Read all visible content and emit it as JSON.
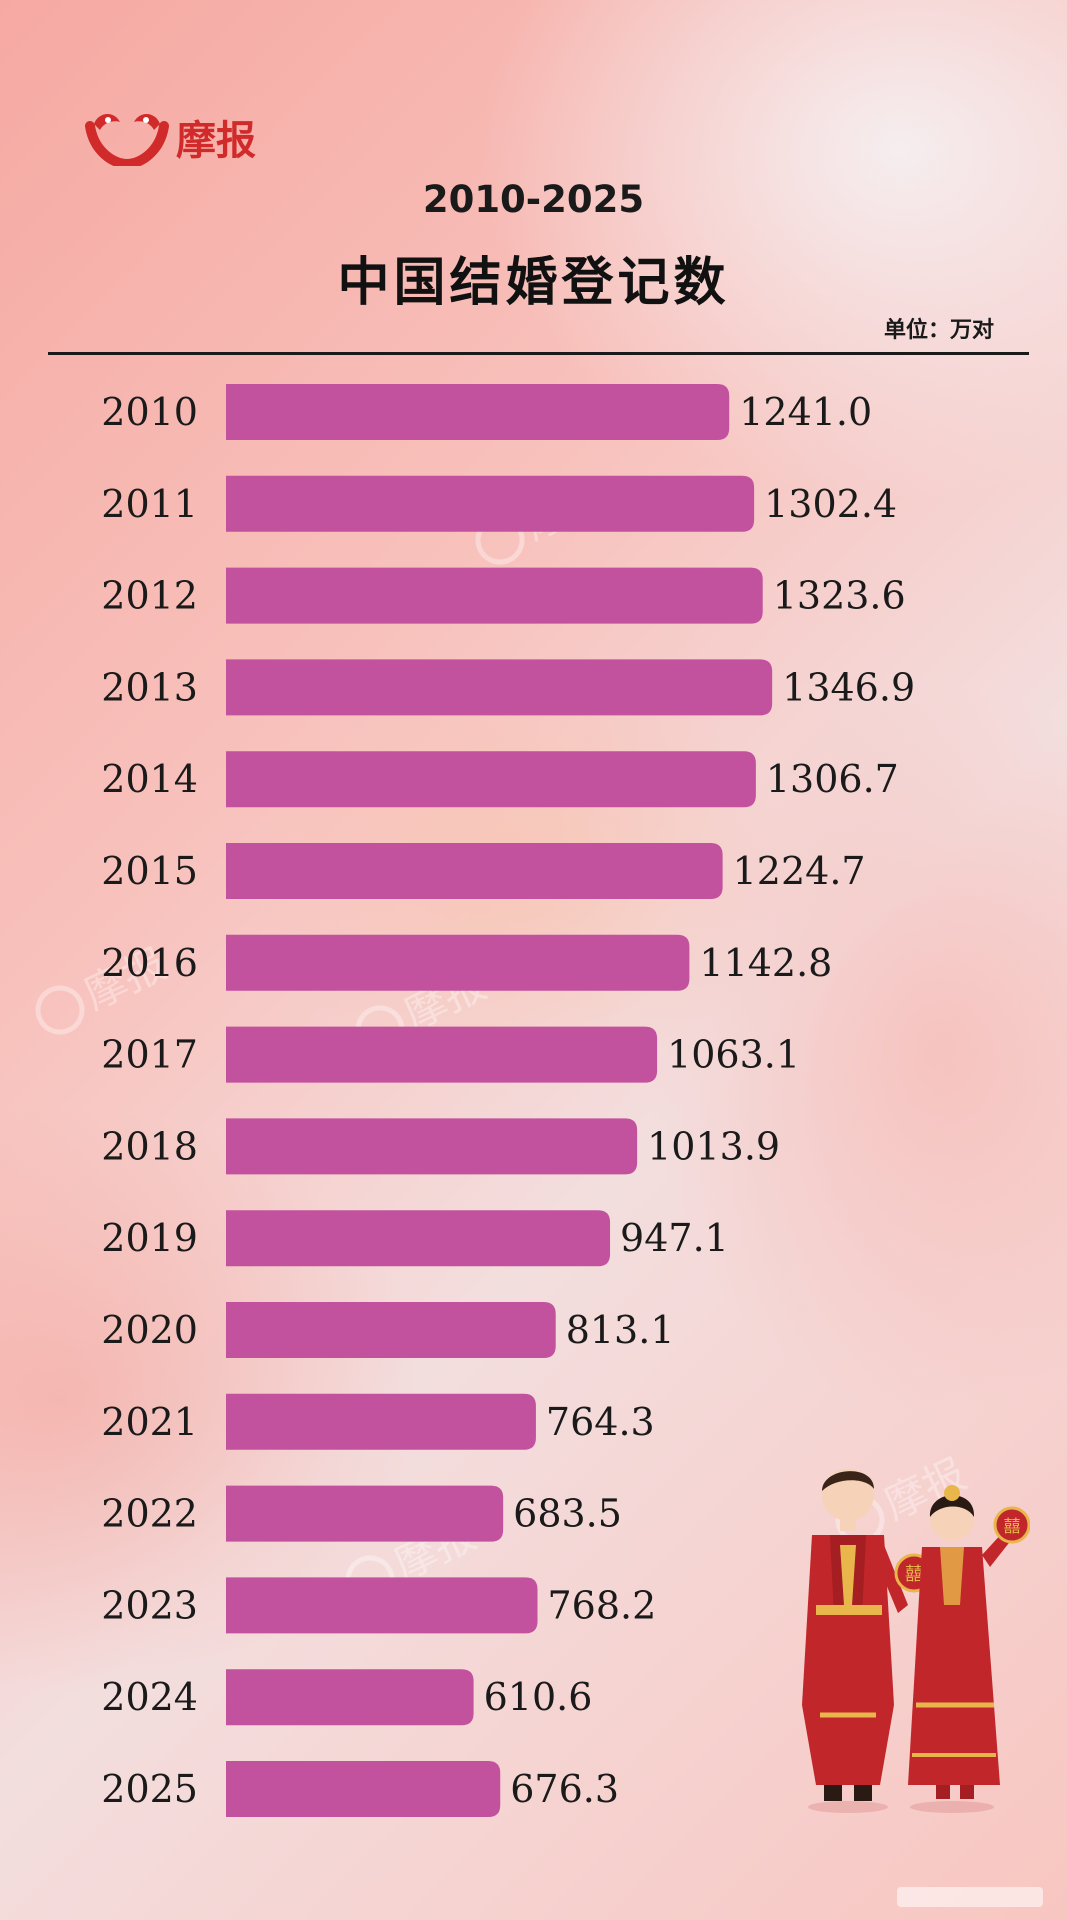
{
  "brand": {
    "name": "摩报",
    "logo_icon": "moba-logo-icon",
    "brand_color": "#d12a2a"
  },
  "chart_data": {
    "type": "bar",
    "orientation": "horizontal",
    "title": "中国结婚登记数",
    "subtitle": "2010-2025",
    "unit": "单位：万对",
    "bar_color": "#c2519e",
    "categories": [
      "2010",
      "2011",
      "2012",
      "2013",
      "2014",
      "2015",
      "2016",
      "2017",
      "2018",
      "2019",
      "2020",
      "2021",
      "2022",
      "2023",
      "2024",
      "2025"
    ],
    "values": [
      1241.0,
      1302.4,
      1323.6,
      1346.9,
      1306.7,
      1224.7,
      1142.8,
      1063.1,
      1013.9,
      947.1,
      813.1,
      764.3,
      683.5,
      768.2,
      610.6,
      676.3
    ],
    "value_labels": [
      "1241.0",
      "1302.4",
      "1323.6",
      "1346.9",
      "1306.7",
      "1224.7",
      "1142.8",
      "1063.1",
      "1013.9",
      "947.1",
      "813.1",
      "764.3",
      "683.5",
      "768.2",
      "610.6",
      "676.3"
    ],
    "grid": false,
    "legend": "none"
  },
  "decorations": {
    "illustration": "wedding-couple-illustration",
    "watermark_icon": "moba-watermark-icon"
  }
}
